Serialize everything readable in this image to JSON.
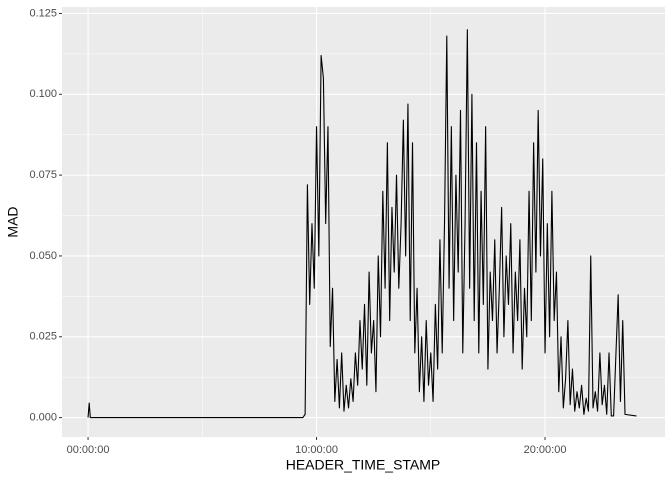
{
  "chart_data": {
    "type": "line",
    "x_label": "HEADER_TIME_STAMP",
    "y_label": "MAD",
    "xlim": [
      -1.14,
      25.25
    ],
    "ylim": [
      -0.006,
      0.127
    ],
    "xticks": [
      {
        "value": 0,
        "label": "00:00:00"
      },
      {
        "value": 10,
        "label": "10:00:00"
      },
      {
        "value": 20,
        "label": "20:00:00"
      }
    ],
    "xminor_ticks": [
      5,
      15
    ],
    "yticks": [
      {
        "value": 0,
        "label": "0.000"
      },
      {
        "value": 0.025,
        "label": "0.025"
      },
      {
        "value": 0.05,
        "label": "0.050"
      },
      {
        "value": 0.075,
        "label": "0.075"
      },
      {
        "value": 0.1,
        "label": "0.100"
      },
      {
        "value": 0.125,
        "label": "0.125"
      }
    ],
    "yminor_ticks": [
      0.0125,
      0.0375,
      0.0625,
      0.0875,
      0.1125
    ],
    "grid": true,
    "color": "#000000",
    "x": [
      0,
      0.05,
      0.1,
      5,
      9.4,
      9.5,
      9.6,
      9.7,
      9.8,
      9.9,
      10.0,
      10.1,
      10.2,
      10.3,
      10.4,
      10.5,
      10.6,
      10.7,
      10.8,
      10.9,
      11.0,
      11.1,
      11.2,
      11.3,
      11.4,
      11.5,
      11.6,
      11.7,
      11.8,
      11.9,
      12.0,
      12.1,
      12.2,
      12.3,
      12.4,
      12.5,
      12.6,
      12.7,
      12.8,
      12.9,
      13.0,
      13.1,
      13.2,
      13.3,
      13.4,
      13.5,
      13.6,
      13.7,
      13.8,
      13.9,
      14.0,
      14.1,
      14.2,
      14.3,
      14.4,
      14.5,
      14.6,
      14.7,
      14.8,
      14.9,
      15.0,
      15.1,
      15.2,
      15.3,
      15.4,
      15.5,
      15.6,
      15.7,
      15.8,
      15.9,
      16.0,
      16.1,
      16.2,
      16.3,
      16.4,
      16.5,
      16.6,
      16.7,
      16.8,
      16.9,
      17.0,
      17.1,
      17.2,
      17.3,
      17.4,
      17.5,
      17.6,
      17.7,
      17.8,
      17.9,
      18.0,
      18.1,
      18.2,
      18.3,
      18.4,
      18.5,
      18.6,
      18.7,
      18.8,
      18.9,
      19.0,
      19.1,
      19.2,
      19.3,
      19.4,
      19.5,
      19.6,
      19.7,
      19.8,
      19.9,
      20.0,
      20.1,
      20.2,
      20.3,
      20.4,
      20.5,
      20.6,
      20.7,
      20.8,
      20.9,
      21.0,
      21.1,
      21.2,
      21.3,
      21.4,
      21.5,
      21.6,
      21.7,
      21.8,
      21.9,
      22.0,
      22.1,
      22.2,
      22.3,
      22.4,
      22.5,
      22.6,
      22.7,
      22.8,
      22.9,
      23.0,
      23.2,
      23.3,
      23.4,
      23.5,
      24.0
    ],
    "values": [
      0,
      0.0045,
      0,
      0,
      0,
      0.001,
      0.072,
      0.035,
      0.06,
      0.04,
      0.09,
      0.05,
      0.112,
      0.105,
      0.06,
      0.09,
      0.022,
      0.04,
      0.005,
      0.018,
      0.003,
      0.02,
      0.002,
      0.01,
      0.003,
      0.012,
      0.005,
      0.02,
      0.01,
      0.03,
      0.015,
      0.035,
      0.01,
      0.045,
      0.02,
      0.03,
      0.008,
      0.05,
      0.025,
      0.07,
      0.04,
      0.085,
      0.03,
      0.065,
      0.045,
      0.075,
      0.04,
      0.06,
      0.092,
      0.05,
      0.097,
      0.03,
      0.085,
      0.02,
      0.04,
      0.008,
      0.025,
      0.005,
      0.03,
      0.01,
      0.02,
      0.005,
      0.035,
      0.015,
      0.055,
      0.02,
      0.06,
      0.118,
      0.04,
      0.09,
      0.03,
      0.075,
      0.045,
      0.095,
      0.02,
      0.06,
      0.12,
      0.04,
      0.1,
      0.03,
      0.085,
      0.02,
      0.07,
      0.035,
      0.09,
      0.015,
      0.045,
      0.03,
      0.055,
      0.02,
      0.04,
      0.065,
      0.025,
      0.05,
      0.035,
      0.06,
      0.02,
      0.045,
      0.03,
      0.055,
      0.015,
      0.04,
      0.025,
      0.07,
      0.03,
      0.085,
      0.045,
      0.095,
      0.05,
      0.08,
      0.02,
      0.06,
      0.025,
      0.07,
      0.03,
      0.045,
      0.008,
      0.025,
      0.003,
      0.012,
      0.03,
      0.004,
      0.015,
      0.002,
      0.008,
      0.003,
      0.01,
      0.001,
      0.006,
      0.002,
      0.05,
      0.003,
      0.008,
      0.002,
      0.02,
      0.004,
      0.01,
      0.001,
      0.02,
      0.0005,
      0.0005,
      0.038,
      0.005,
      0.03,
      0.001,
      0.0005
    ]
  }
}
